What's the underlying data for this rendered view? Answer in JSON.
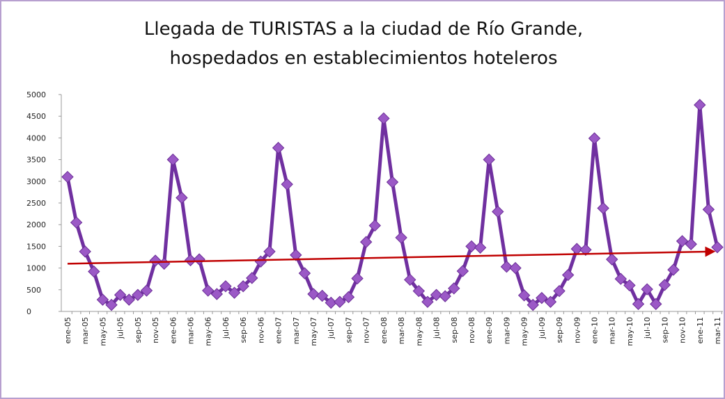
{
  "chart_data": {
    "type": "line",
    "title": [
      "Llegada de TURISTAS a la ciudad de Río Grande,",
      "hospedados en establecimientos hoteleros"
    ],
    "categories": [
      "ene-05",
      null,
      "mar-05",
      null,
      "may-05",
      null,
      "jul-05",
      null,
      "sep-05",
      null,
      "nov-05",
      null,
      "ene-06",
      null,
      "mar-06",
      null,
      "may-06",
      null,
      "jul-06",
      null,
      "sep-06",
      null,
      "nov-06",
      null,
      "ene-07",
      null,
      "mar-07",
      null,
      "may-07",
      null,
      "jul-07",
      null,
      "sep-07",
      null,
      "nov-07",
      null,
      "ene-08",
      null,
      "mar-08",
      null,
      "may-08",
      null,
      "jul-08",
      null,
      "sep-08",
      null,
      "nov-08",
      null,
      "ene-09",
      null,
      "mar-09",
      null,
      "may-09",
      null,
      "jul-09",
      null,
      "sep-09",
      null,
      "nov-09",
      null,
      "ene-10",
      null,
      "mar-10",
      null,
      "may-10",
      null,
      "jul-10",
      null,
      "sep-10",
      null,
      "nov-10",
      null,
      "ene-11",
      null,
      "mar-11"
    ],
    "series": [
      {
        "color": "#7030a0",
        "marker_color": "#9b59c6",
        "values": [
          3100,
          2050,
          1380,
          920,
          270,
          150,
          380,
          270,
          380,
          480,
          1170,
          1100,
          3500,
          2620,
          1180,
          1200,
          480,
          400,
          580,
          430,
          580,
          770,
          1150,
          1380,
          3770,
          2930,
          1300,
          880,
          400,
          360,
          200,
          220,
          330,
          760,
          1600,
          1980,
          4450,
          2980,
          1700,
          730,
          470,
          220,
          380,
          350,
          530,
          930,
          1500,
          1470,
          3500,
          2300,
          1030,
          1000,
          370,
          150,
          310,
          220,
          470,
          840,
          1440,
          1420,
          3990,
          2380,
          1200,
          750,
          600,
          170,
          510,
          170,
          610,
          960,
          1620,
          1550,
          4760,
          2350,
          1480
        ]
      }
    ],
    "trendline": {
      "color": "#c00000",
      "values": [
        1100,
        1380
      ]
    },
    "ylim": [
      0,
      5000
    ],
    "yticks": [
      0,
      500,
      1000,
      1500,
      2000,
      2500,
      3000,
      3500,
      4000,
      4500,
      5000
    ],
    "grid": false
  }
}
